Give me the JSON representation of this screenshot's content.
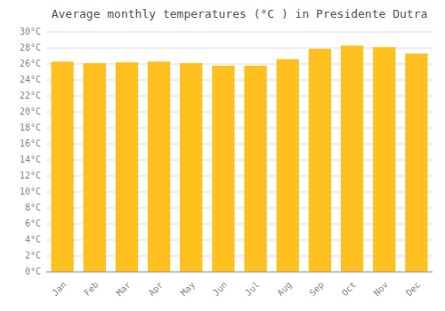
{
  "chart_data": {
    "type": "bar",
    "title": "Average monthly temperatures (°C ) in Presidente Dutra",
    "categories": [
      "Jan",
      "Feb",
      "Mar",
      "Apr",
      "May",
      "Jun",
      "Jul",
      "Aug",
      "Sep",
      "Oct",
      "Nov",
      "Dec"
    ],
    "values": [
      26.3,
      26.1,
      26.2,
      26.3,
      26.1,
      25.8,
      25.8,
      26.6,
      27.9,
      28.3,
      28.1,
      27.3
    ],
    "color": "#FFC020",
    "ylim": [
      0,
      30
    ],
    "yticks": [
      {
        "value": 0,
        "label": "0°C"
      },
      {
        "value": 2,
        "label": "2°C"
      },
      {
        "value": 4,
        "label": "4°C"
      },
      {
        "value": 6,
        "label": "6°C"
      },
      {
        "value": 8,
        "label": "8°C"
      },
      {
        "value": 10,
        "label": "10°C"
      },
      {
        "value": 12,
        "label": "12°C"
      },
      {
        "value": 14,
        "label": "14°C"
      },
      {
        "value": 16,
        "label": "16°C"
      },
      {
        "value": 18,
        "label": "18°C"
      },
      {
        "value": 20,
        "label": "20°C"
      },
      {
        "value": 22,
        "label": "22°C"
      },
      {
        "value": 24,
        "label": "24°C"
      },
      {
        "value": 26,
        "label": "26°C"
      },
      {
        "value": 28,
        "label": "28°C"
      },
      {
        "value": 30,
        "label": "30°C"
      }
    ],
    "grid": true
  }
}
